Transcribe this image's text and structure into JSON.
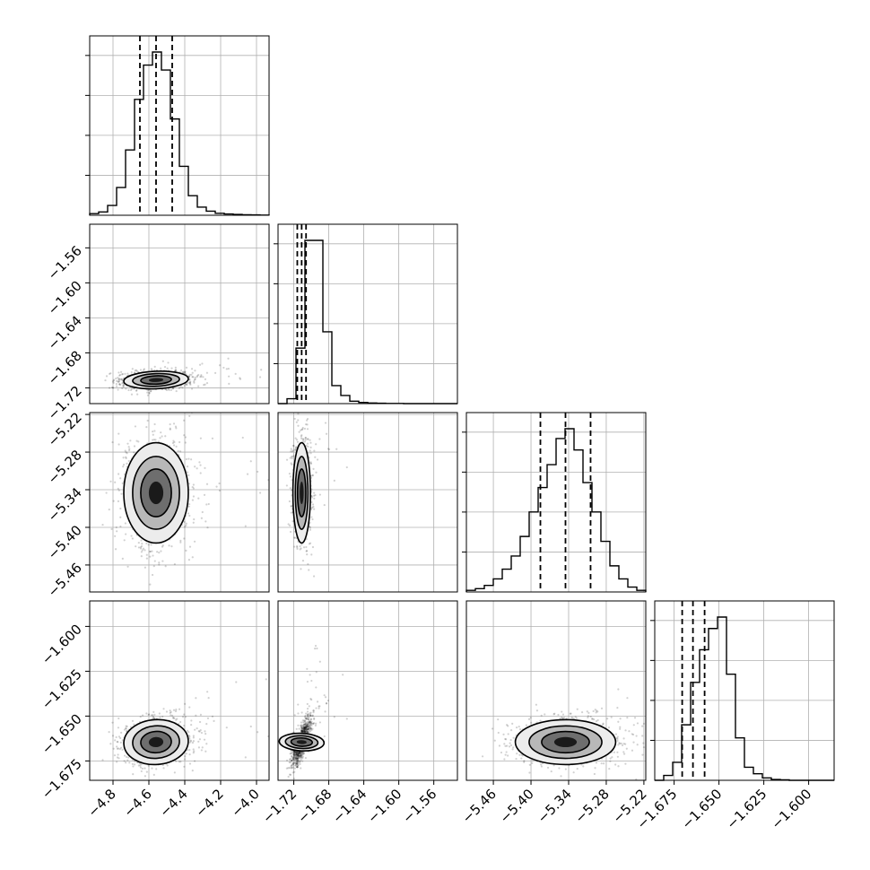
{
  "chart_data": {
    "type": "corner",
    "grid": true,
    "parameters": [
      {
        "xticks": [
          "−4.8",
          "−4.6",
          "−4.4",
          "−4.2",
          "−4.0"
        ],
        "yticks": []
      },
      {
        "xticks": [
          "−1.72",
          "−1.68",
          "−1.64",
          "−1.60",
          "−1.56"
        ],
        "yticks": [
          "−1.56",
          "−1.60",
          "−1.64",
          "−1.68",
          "−1.72"
        ]
      },
      {
        "xticks": [
          "−5.46",
          "−5.40",
          "−5.34",
          "−5.28",
          "−5.22"
        ],
        "yticks": [
          "−5.22",
          "−5.28",
          "−5.34",
          "−5.40",
          "−5.46"
        ]
      },
      {
        "xticks": [
          "−1.675",
          "−1.650",
          "−1.625",
          "−1.600"
        ],
        "yticks": [
          "−1.600",
          "−1.625",
          "−1.650",
          "−1.675"
        ]
      }
    ],
    "ranges": [
      [
        -4.93,
        -3.93
      ],
      [
        -1.738,
        -1.533
      ],
      [
        -5.503,
        -5.217
      ],
      [
        -1.6858,
        -1.5858
      ]
    ],
    "quantiles": [
      [
        -4.65,
        -4.56,
        -4.47
      ],
      [
        -1.716,
        -1.711,
        -1.706
      ],
      [
        -5.385,
        -5.345,
        -5.305
      ],
      [
        -1.6705,
        -1.6645,
        -1.658
      ]
    ],
    "histograms": [
      [
        0.01,
        0.02,
        0.06,
        0.17,
        0.4,
        0.71,
        0.92,
        1.0,
        0.89,
        0.59,
        0.3,
        0.12,
        0.05,
        0.025,
        0.012,
        0.008,
        0.005,
        0.003,
        0.002,
        0.001
      ],
      [
        0.0,
        0.03,
        0.34,
        1.0,
        1.0,
        0.44,
        0.11,
        0.05,
        0.015,
        0.007,
        0.004,
        0.002,
        0.001,
        0.001,
        0.0,
        0.0,
        0.0,
        0.0,
        0.0,
        0.0
      ],
      [
        0.01,
        0.02,
        0.04,
        0.08,
        0.14,
        0.22,
        0.34,
        0.49,
        0.64,
        0.78,
        0.94,
        1.0,
        0.87,
        0.67,
        0.49,
        0.31,
        0.16,
        0.08,
        0.03,
        0.01
      ],
      [
        0.0,
        0.03,
        0.11,
        0.34,
        0.6,
        0.8,
        0.93,
        1.0,
        0.65,
        0.26,
        0.08,
        0.04,
        0.015,
        0.005,
        0.003,
        0.0,
        0.0,
        0.0,
        0.0,
        0.0
      ]
    ],
    "density_levels": [
      "1σ",
      "2σ",
      "3σ"
    ]
  }
}
